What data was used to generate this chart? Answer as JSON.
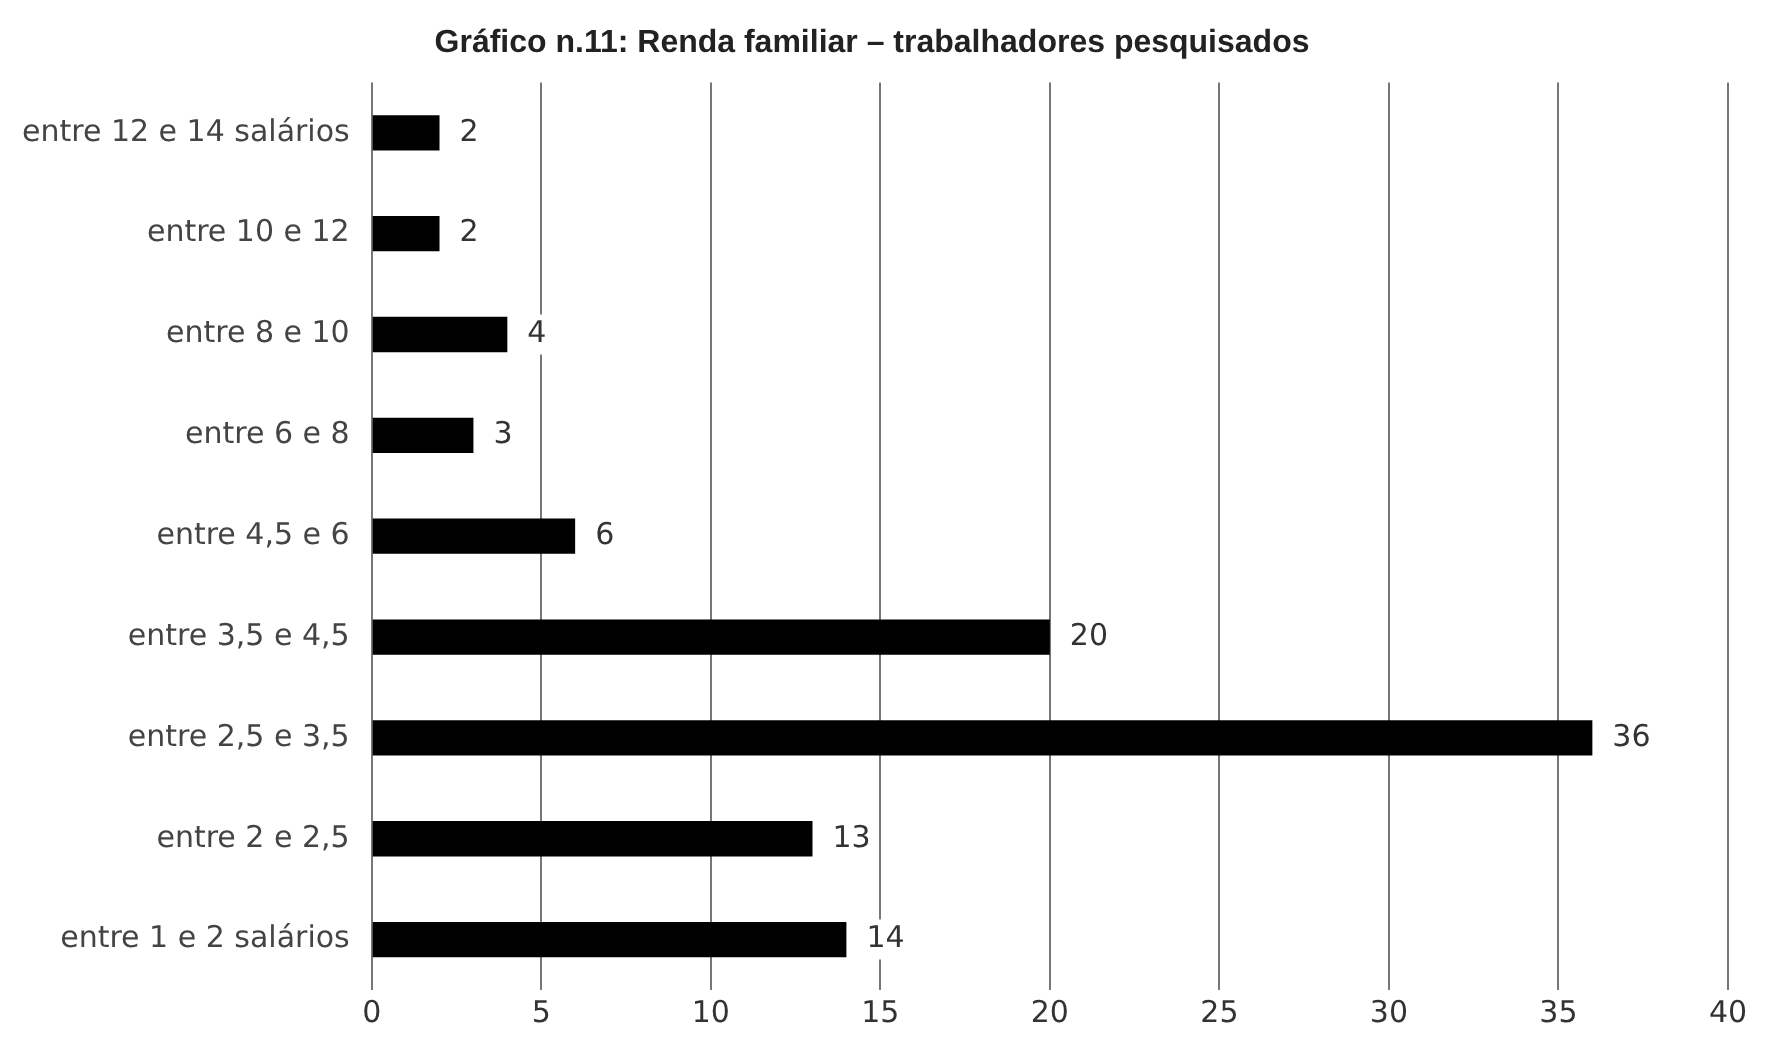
{
  "chart_data": {
    "type": "bar",
    "orientation": "horizontal",
    "title": "Gráfico n.11: Renda familiar – trabalhadores pesquisados",
    "categories": [
      "entre 12 e 14 salários",
      "entre 10 e 12",
      "entre 8 e 10",
      "entre 6 e 8",
      "entre 4,5 e 6",
      "entre 3,5 e 4,5",
      "entre 2,5 e 3,5",
      "entre 2 e 2,5",
      "entre 1 e 2 salários"
    ],
    "values": [
      2,
      2,
      4,
      3,
      6,
      20,
      36,
      13,
      14
    ],
    "color": "#000000",
    "xlim": [
      0,
      40
    ],
    "xticks": [
      0,
      5,
      10,
      15,
      20,
      25,
      30,
      35,
      40
    ],
    "grid": "x",
    "data_labels": true,
    "legend": false
  }
}
